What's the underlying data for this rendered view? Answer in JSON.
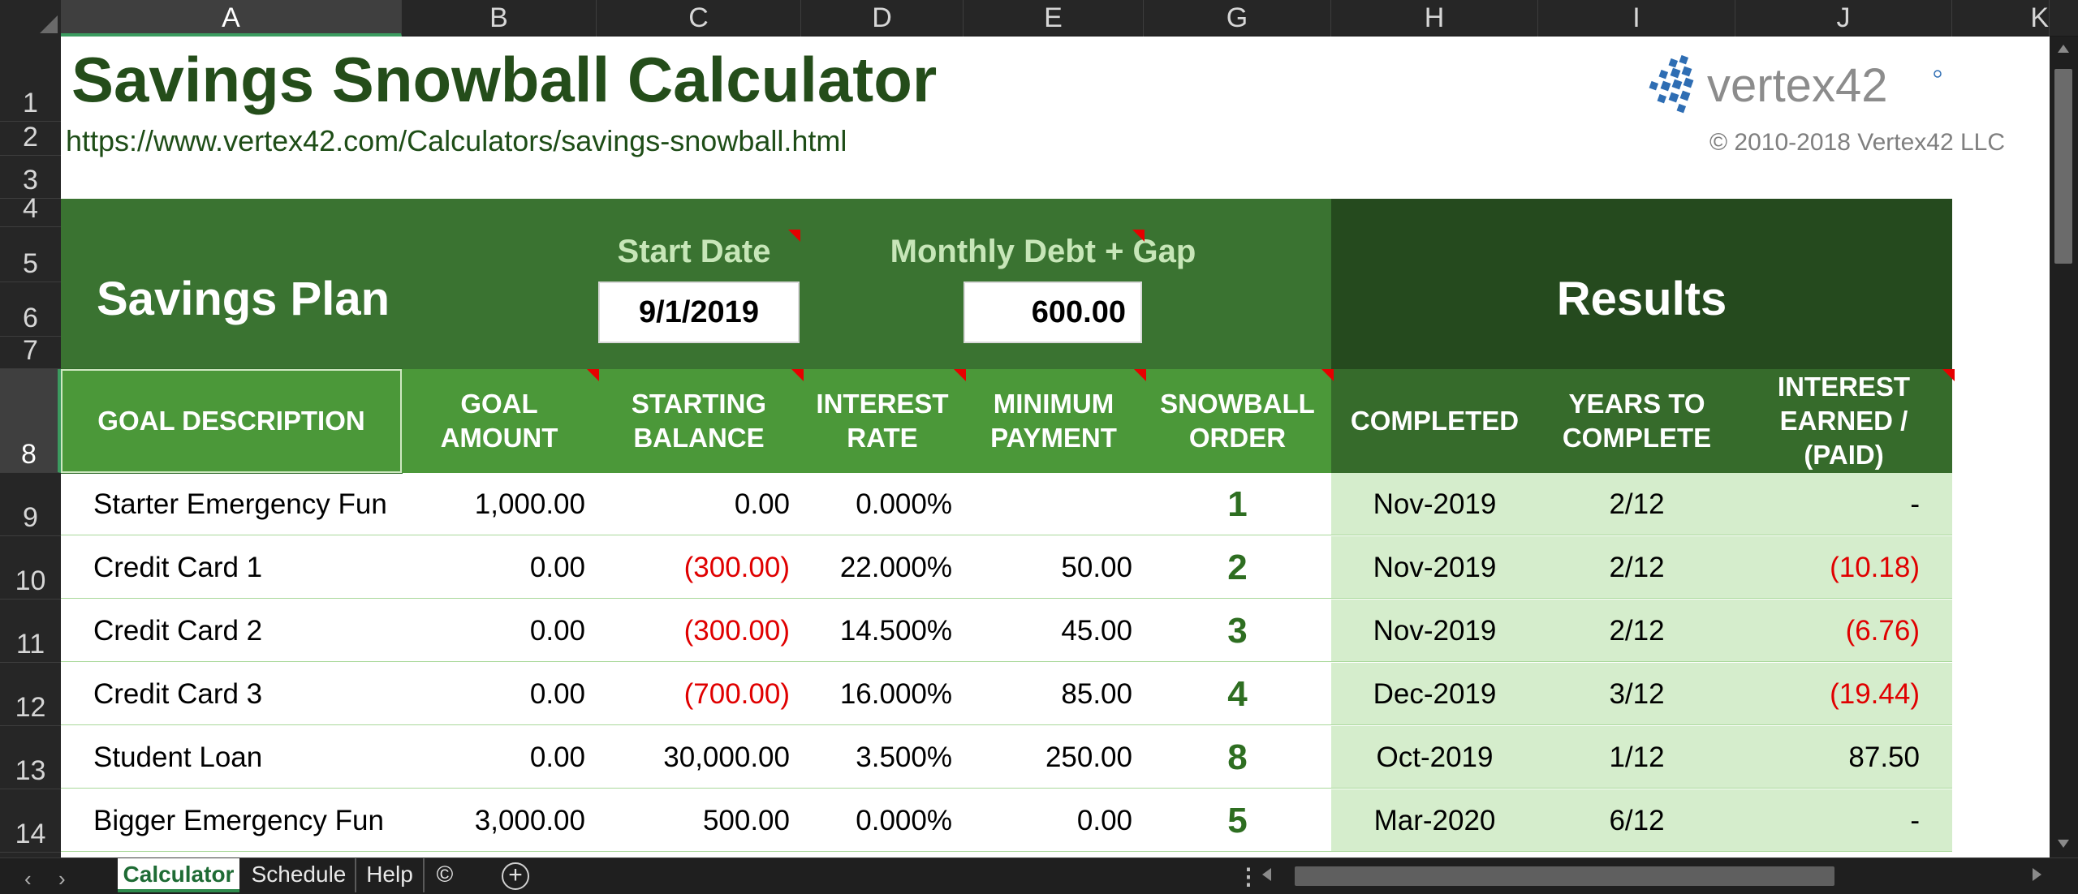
{
  "columns": [
    "A",
    "B",
    "C",
    "D",
    "E",
    "G",
    "H",
    "I",
    "J",
    "K"
  ],
  "rows": [
    "1",
    "2",
    "3",
    "4",
    "5",
    "6",
    "7",
    "8",
    "9",
    "10",
    "11",
    "12",
    "13",
    "14"
  ],
  "sheet": {
    "title": "Savings Snowball Calculator",
    "url": "https://www.vertex42.com/Calculators/savings-snowball.html",
    "logo_text": "vertex42",
    "copyright": "© 2010-2018 Vertex42 LLC",
    "plan_label": "Savings Plan",
    "results_label": "Results",
    "start_date_label": "Start Date",
    "start_date_value": "9/1/2019",
    "monthly_label": "Monthly Debt + Gap",
    "monthly_value": "600.00"
  },
  "headers": {
    "goal_description": "GOAL DESCRIPTION",
    "goal_amount": "GOAL\nAMOUNT",
    "starting_balance": "STARTING\nBALANCE",
    "interest_rate": "INTEREST\nRATE",
    "minimum_payment": "MINIMUM\nPAYMENT",
    "snowball_order": "SNOWBALL\nORDER",
    "completed": "COMPLETED",
    "years_to_complete": "YEARS TO\nCOMPLETE",
    "interest_earned": "INTEREST\nEARNED /\n(PAID)"
  },
  "goals": [
    {
      "description": "Starter Emergency Fun",
      "goal_amount": "1,000.00",
      "starting_balance": "0.00",
      "interest_rate": "0.000%",
      "minimum_payment": "",
      "order": "1",
      "completed": "Nov-2019",
      "years": "2/12",
      "interest": "-"
    },
    {
      "description": "Credit Card 1",
      "goal_amount": "0.00",
      "starting_balance": "(300.00)",
      "interest_rate": "22.000%",
      "minimum_payment": "50.00",
      "order": "2",
      "completed": "Nov-2019",
      "years": "2/12",
      "interest": "(10.18)"
    },
    {
      "description": "Credit Card 2",
      "goal_amount": "0.00",
      "starting_balance": "(300.00)",
      "interest_rate": "14.500%",
      "minimum_payment": "45.00",
      "order": "3",
      "completed": "Nov-2019",
      "years": "2/12",
      "interest": "(6.76)"
    },
    {
      "description": "Credit Card 3",
      "goal_amount": "0.00",
      "starting_balance": "(700.00)",
      "interest_rate": "16.000%",
      "minimum_payment": "85.00",
      "order": "4",
      "completed": "Dec-2019",
      "years": "3/12",
      "interest": "(19.44)"
    },
    {
      "description": "Student Loan",
      "goal_amount": "0.00",
      "starting_balance": "30,000.00",
      "interest_rate": "3.500%",
      "minimum_payment": "250.00",
      "order": "8",
      "completed": "Oct-2019",
      "years": "1/12",
      "interest": "87.50"
    },
    {
      "description": "Bigger Emergency Fun",
      "goal_amount": "3,000.00",
      "starting_balance": "500.00",
      "interest_rate": "0.000%",
      "minimum_payment": "0.00",
      "order": "5",
      "completed": "Mar-2020",
      "years": "6/12",
      "interest": "-"
    }
  ],
  "tabs": [
    "Calculator",
    "Schedule",
    "Help",
    "©"
  ],
  "colors": {
    "title_green": "#244d1a",
    "plan_band": "#3a7331",
    "results_band": "#254a1e",
    "header_green": "#4b9839",
    "results_header": "#366b2b",
    "results_fill": "#d5edcc",
    "negative_red": "#e00000"
  },
  "icons": {
    "add_sheet": "plus-circle-icon",
    "scroll_left": "triangle-left-icon",
    "scroll_right": "triangle-right-icon"
  }
}
